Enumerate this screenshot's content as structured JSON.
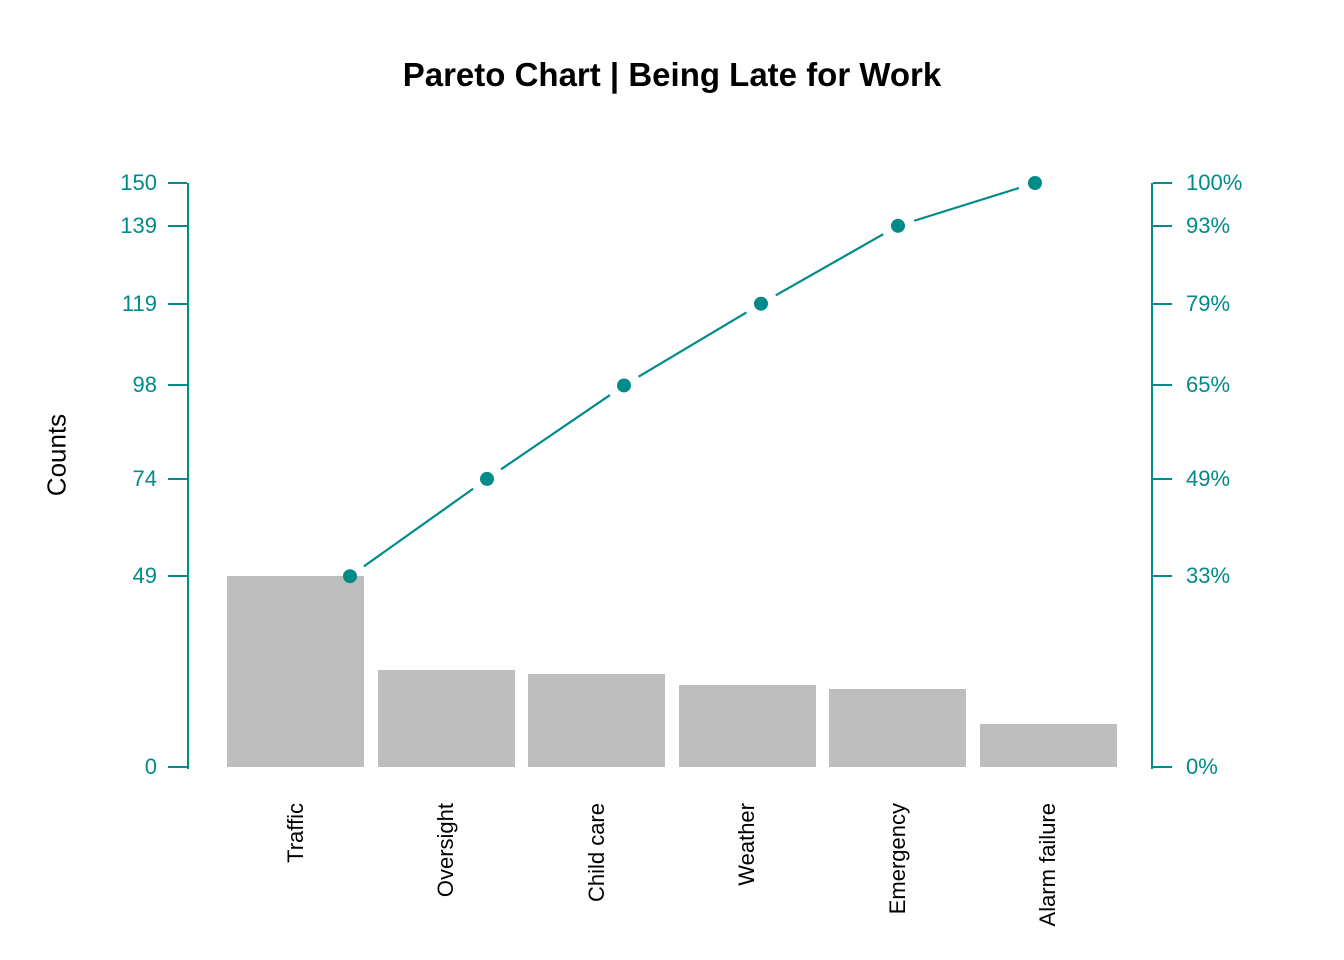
{
  "chart_data": {
    "type": "pareto",
    "title": "Pareto Chart | Being Late for Work",
    "ylabel": "Counts",
    "categories": [
      "Traffic",
      "Oversight",
      "Child care",
      "Weather",
      "Emergency",
      "Alarm failure"
    ],
    "counts": [
      49,
      25,
      24,
      21,
      20,
      11
    ],
    "cumulative_counts": [
      49,
      74,
      98,
      119,
      139,
      150
    ],
    "cumulative_percent_labels": [
      "33%",
      "49%",
      "65%",
      "79%",
      "93%",
      "100%"
    ],
    "left_axis_ticks": [
      0,
      49,
      74,
      98,
      119,
      139,
      150
    ],
    "right_axis_tick_labels": [
      "0%",
      "33%",
      "49%",
      "65%",
      "79%",
      "93%",
      "100%"
    ],
    "ylim": [
      0,
      150
    ],
    "grid": false,
    "legend": "none",
    "colors": {
      "bar": "#BEBEBE",
      "line": "#008B8B",
      "axis": "#008B8B",
      "axis_text": "#008B8B",
      "text": "#000000"
    }
  }
}
